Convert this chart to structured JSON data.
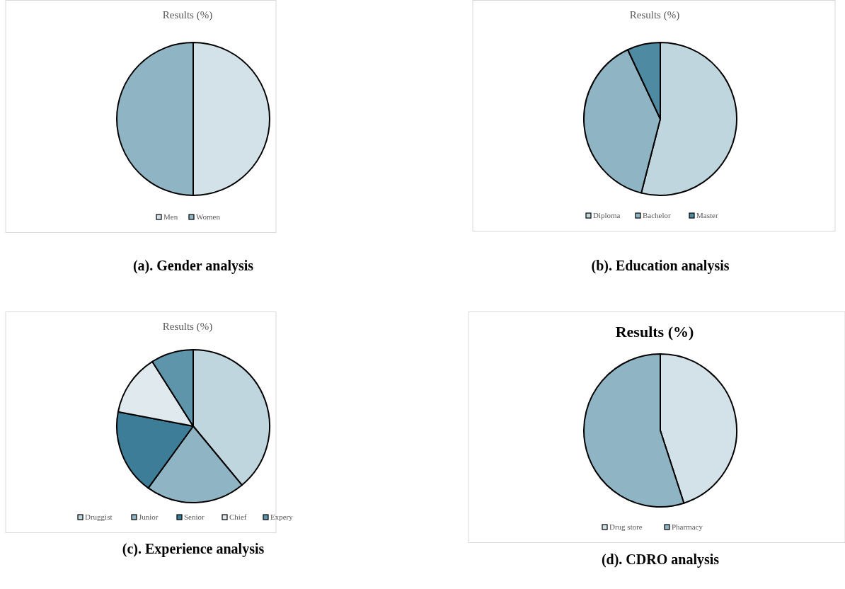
{
  "chart_data": [
    {
      "type": "pie",
      "title": "Results (%)",
      "categories": [
        "Men",
        "Women"
      ],
      "values": [
        50,
        50
      ],
      "colors": [
        "#d2e2e8",
        "#8fb5c4"
      ],
      "legend": "bottom",
      "annotations": [
        "(a). Gender analysis"
      ]
    },
    {
      "type": "pie",
      "title": "Results (%)",
      "categories": [
        "Diploma",
        "Bachelor",
        "Master"
      ],
      "values": [
        54,
        39,
        7
      ],
      "colors": [
        "#c0d6df",
        "#8fb5c4",
        "#4f8aa3"
      ],
      "legend": "bottom",
      "annotations": [
        "(b). Education analysis"
      ]
    },
    {
      "type": "pie",
      "title": "Results (%)",
      "categories": [
        "Druggist",
        "Junior",
        "Senior",
        "Chief",
        "Expery"
      ],
      "values": [
        39,
        21,
        18,
        13,
        9
      ],
      "colors": [
        "#c0d6df",
        "#8fb5c4",
        "#3d7d98",
        "#dfe9ee",
        "#5f95ab"
      ],
      "legend": "bottom",
      "annotations": [
        "(c). Experience analysis"
      ]
    },
    {
      "type": "pie",
      "title": "Results (%)",
      "categories": [
        "Drug store",
        "Pharmacy"
      ],
      "values": [
        45,
        55
      ],
      "colors": [
        "#d2e2e8",
        "#8fb5c4"
      ],
      "legend": "bottom",
      "annotations": [
        "(d). CDRO analysis"
      ]
    }
  ]
}
